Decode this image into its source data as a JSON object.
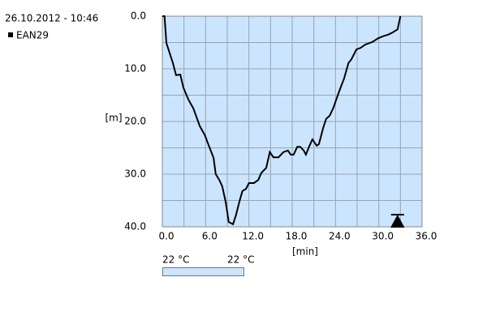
{
  "chart_data": {
    "type": "line",
    "title": "26.10.2012 - 10:46",
    "x_label": "[min]",
    "y_label": "[m]",
    "x": [
      0,
      0.3,
      0.56,
      1.46,
      1.9,
      2.5,
      2.9,
      3.6,
      4.3,
      5.2,
      5.9,
      6.5,
      7.1,
      7.4,
      7.9,
      8.3,
      8.8,
      9.2,
      9.8,
      10.2,
      10.7,
      11.1,
      11.6,
      12,
      12.7,
      13.3,
      13.7,
      14.4,
      14.9,
      15.4,
      16.1,
      16.8,
      17.4,
      17.8,
      18.2,
      18.7,
      19.1,
      19.6,
      19.9,
      20.4,
      20.8,
      21.4,
      21.7,
      22.3,
      22.7,
      23.2,
      23.7,
      24.5,
      25.2,
      25.8,
      26.2,
      26.9,
      27.5,
      28.1,
      29.1,
      29.9,
      30.6,
      31.3,
      31.9,
      32.6,
      33
    ],
    "series": [
      {
        "name": "EAN29",
        "color": "#000000",
        "values": [
          0,
          0,
          5.1,
          8.9,
          11.2,
          11.1,
          13.5,
          15.8,
          17.5,
          20.9,
          22.6,
          24.8,
          26.9,
          30,
          31.1,
          32.3,
          35.4,
          39.1,
          39.5,
          37.8,
          35.1,
          33.2,
          32.8,
          31.7,
          31.7,
          31.1,
          29.8,
          28.8,
          25.8,
          26.8,
          26.8,
          25.8,
          25.5,
          26.3,
          26.3,
          24.8,
          24.8,
          25.5,
          26.3,
          24.6,
          23.4,
          24.6,
          24.3,
          21.2,
          19.5,
          18.9,
          17.4,
          14.3,
          11.8,
          8.9,
          8.2,
          6.3,
          6,
          5.4,
          4.9,
          4.2,
          3.8,
          3.5,
          3.1,
          2.5,
          0
        ]
      }
    ],
    "xlim": [
      0,
      36
    ],
    "ylim": [
      0,
      40
    ],
    "y_inverted": true,
    "xticks": [
      {
        "value": 0,
        "label": "0.0"
      },
      {
        "value": 6,
        "label": "6.0"
      },
      {
        "value": 12,
        "label": "12.0"
      },
      {
        "value": 18,
        "label": "18.0"
      },
      {
        "value": 24,
        "label": "24.0"
      },
      {
        "value": 30,
        "label": "30.0"
      },
      {
        "value": 36,
        "label": "36.0"
      }
    ],
    "yticks": [
      {
        "value": 0,
        "label": "0.0"
      },
      {
        "value": 10,
        "label": "10.0"
      },
      {
        "value": 20,
        "label": "20.0"
      },
      {
        "value": 30,
        "label": "30.0"
      },
      {
        "value": 40,
        "label": "40.0"
      }
    ],
    "xminorticks": [
      3,
      9,
      15,
      21,
      27,
      33
    ],
    "yminorticks": [
      5,
      15,
      25,
      35
    ],
    "grid": true,
    "background": "#cce5ff",
    "events": [
      {
        "x": 32.6
      }
    ],
    "temperature": {
      "labels": [
        "22 °C",
        "22 °C"
      ],
      "color": "#cce5ff"
    }
  }
}
